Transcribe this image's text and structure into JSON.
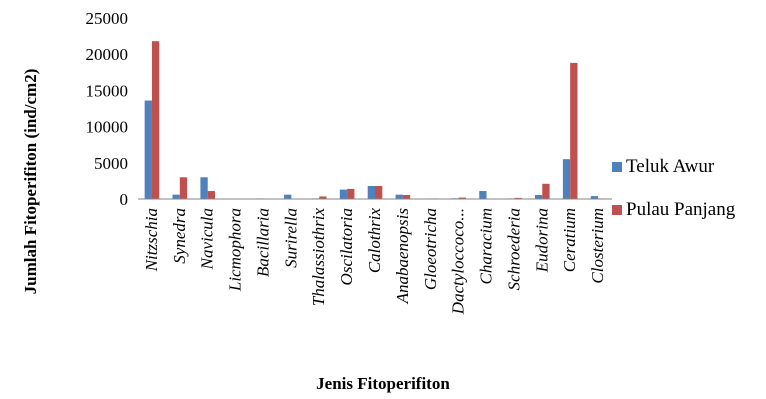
{
  "chart_data": {
    "type": "bar",
    "title": "",
    "xlabel": "Jenis Fitoperifiton",
    "ylabel": "Jumlah Fitoperifiton (ind/cm2)",
    "ylim": [
      0,
      25000
    ],
    "yticks": [
      "0",
      "5000",
      "10000",
      "15000",
      "20000",
      "25000"
    ],
    "grid": false,
    "legend_position": "right",
    "categories": [
      "Nitzschia",
      "Synedra",
      "Navicula",
      "Licmophora",
      "Bacillaria",
      "Surirella",
      "Thalassiothrix",
      "Oscilatoria",
      "Calothrix",
      "Anabaenopsis",
      "Gloeotricha",
      "Dactyloccoco...",
      "Characium",
      "Schroederia",
      "Eudorina",
      "Ceratium",
      "Closterium"
    ],
    "series": [
      {
        "name": "Teluk Awur",
        "color": "#4f81bd",
        "values": [
          13600,
          600,
          3000,
          50,
          80,
          600,
          80,
          1300,
          1800,
          600,
          50,
          100,
          1100,
          80,
          550,
          5500,
          400
        ]
      },
      {
        "name": "Pulau Panjang",
        "color": "#c0504d",
        "values": [
          21800,
          3000,
          1100,
          30,
          50,
          50,
          350,
          1400,
          1800,
          550,
          80,
          200,
          60,
          150,
          2100,
          18800,
          80
        ]
      }
    ]
  }
}
